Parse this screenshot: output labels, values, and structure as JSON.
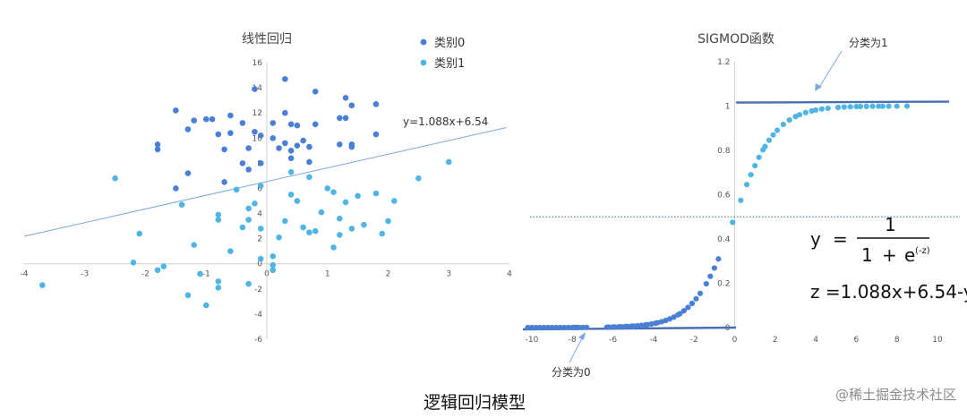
{
  "caption": "逻辑回归模型",
  "watermark": "@稀土掘金技术社区",
  "colors": {
    "class0": "#4a7fd6",
    "class1": "#4fb5e4",
    "line": "#7fa6de",
    "sig_line": "#4a6fb0",
    "ref": "#3a62a8"
  },
  "chart_data": [
    {
      "type": "scatter",
      "title": "线性回归",
      "xlim": [
        -4,
        4
      ],
      "ylim": [
        -6,
        16
      ],
      "x_ticks": [
        "-4",
        "-3",
        "-2",
        "-1",
        "0",
        "1",
        "2",
        "3",
        "4"
      ],
      "y_ticks": [
        "-6",
        "-4",
        "-2",
        "0",
        "2",
        "4",
        "6",
        "8",
        "10",
        "12",
        "14",
        "16"
      ],
      "legend_position": "top-right",
      "series": [
        {
          "name": "类别0",
          "points": [
            [
              -0.2,
              13.9
            ],
            [
              0.3,
              14.7
            ],
            [
              0.8,
              13.7
            ],
            [
              1.3,
              13.2
            ],
            [
              1.4,
              12.6
            ],
            [
              1.8,
              12.7
            ],
            [
              -1.5,
              12.2
            ],
            [
              -1.2,
              11.4
            ],
            [
              -1.0,
              11.5
            ],
            [
              -0.9,
              11.5
            ],
            [
              -0.6,
              11.8
            ],
            [
              -0.4,
              11.2
            ],
            [
              -0.2,
              10.5
            ],
            [
              0.1,
              11.2
            ],
            [
              0.3,
              12.0
            ],
            [
              0.4,
              11.1
            ],
            [
              0.5,
              11.0
            ],
            [
              0.8,
              11.1
            ],
            [
              1.2,
              11.6
            ],
            [
              1.3,
              11.6
            ],
            [
              -1.3,
              10.7
            ],
            [
              -0.8,
              10.3
            ],
            [
              -0.6,
              10.4
            ],
            [
              -0.1,
              10.2
            ],
            [
              0.1,
              10.0
            ],
            [
              0.3,
              9.6
            ],
            [
              0.5,
              9.4
            ],
            [
              0.7,
              9.3
            ],
            [
              0.6,
              9.8
            ],
            [
              1.2,
              9.5
            ],
            [
              1.4,
              9.3
            ],
            [
              1.4,
              9.5
            ],
            [
              1.8,
              10.3
            ],
            [
              -1.8,
              9.5
            ],
            [
              -1.8,
              9.1
            ],
            [
              -0.7,
              9.1
            ],
            [
              -0.3,
              9.2
            ],
            [
              0.2,
              9.2
            ],
            [
              0.4,
              9.0
            ],
            [
              -0.4,
              8.0
            ],
            [
              -0.1,
              8.0
            ],
            [
              0.4,
              8.4
            ],
            [
              0.7,
              8.1
            ],
            [
              -1.3,
              7.2
            ],
            [
              -0.7,
              6.5
            ],
            [
              -1.5,
              6.0
            ],
            [
              -0.3,
              7.5
            ]
          ]
        },
        {
          "name": "类别1",
          "points": [
            [
              -3.7,
              -1.7
            ],
            [
              -2.5,
              6.8
            ],
            [
              -2.2,
              0.1
            ],
            [
              -2.1,
              2.4
            ],
            [
              -1.8,
              -0.5
            ],
            [
              -1.7,
              -0.2
            ],
            [
              -1.4,
              4.7
            ],
            [
              -1.3,
              -2.5
            ],
            [
              -1.0,
              -3.3
            ],
            [
              -1.1,
              -0.8
            ],
            [
              -1.2,
              1.5
            ],
            [
              -0.8,
              -1.9
            ],
            [
              -0.8,
              -1.4
            ],
            [
              -0.8,
              3.9
            ],
            [
              -0.8,
              3.5
            ],
            [
              -0.6,
              1.0
            ],
            [
              -0.5,
              5.9
            ],
            [
              -0.4,
              2.9
            ],
            [
              -0.3,
              3.5
            ],
            [
              -0.3,
              4.4
            ],
            [
              -0.2,
              4.8
            ],
            [
              -0.3,
              -1.6
            ],
            [
              -0.1,
              0.4
            ],
            [
              -0.1,
              2.8
            ],
            [
              0.1,
              -0.5
            ],
            [
              0.1,
              -0.1
            ],
            [
              0.1,
              0.6
            ],
            [
              0.2,
              2.1
            ],
            [
              0.3,
              3.4
            ],
            [
              0.4,
              5.5
            ],
            [
              0.4,
              7.3
            ],
            [
              0.5,
              5.0
            ],
            [
              0.6,
              2.9
            ],
            [
              0.7,
              2.5
            ],
            [
              0.8,
              2.6
            ],
            [
              0.9,
              4.1
            ],
            [
              1.0,
              6.0
            ],
            [
              1.1,
              5.7
            ],
            [
              1.1,
              1.3
            ],
            [
              1.2,
              2.3
            ],
            [
              1.2,
              3.6
            ],
            [
              1.3,
              4.9
            ],
            [
              1.4,
              2.8
            ],
            [
              1.5,
              5.4
            ],
            [
              1.6,
              3.1
            ],
            [
              1.8,
              5.6
            ],
            [
              1.9,
              2.4
            ],
            [
              2.0,
              3.4
            ],
            [
              2.1,
              5.0
            ],
            [
              2.5,
              6.8
            ],
            [
              3.0,
              8.1
            ],
            [
              0.7,
              6.9
            ],
            [
              -0.1,
              6.2
            ]
          ]
        }
      ],
      "fit": {
        "slope": 1.088,
        "intercept": 6.54,
        "label": "y=1.088x+6.54"
      }
    },
    {
      "type": "scatter",
      "title": "SIGMOD函数",
      "xlim": [
        -10,
        10
      ],
      "ylim": [
        0,
        1.2
      ],
      "x_ticks": [
        "-10",
        "-8",
        "-6",
        "-4",
        "-2",
        "0",
        "2",
        "4",
        "6",
        "8",
        "10"
      ],
      "y_ticks": [
        "0",
        "0.2",
        "0.4",
        "0.6",
        "0.8",
        "1",
        "1.2"
      ],
      "function": "sigmoid",
      "class0_x": [
        -10.2,
        -10.0,
        -9.8,
        -9.6,
        -9.4,
        -9.2,
        -9.0,
        -8.8,
        -8.6,
        -8.4,
        -8.2,
        -8.0,
        -7.9,
        -7.8,
        -7.7,
        -7.5,
        -7.3,
        -6.3,
        -6.2,
        -6.0,
        -5.9,
        -5.7,
        -5.6,
        -5.4,
        -5.3,
        -5.1,
        -5.0,
        -4.8,
        -4.6,
        -4.4,
        -4.3,
        -4.1,
        -3.9,
        -3.8,
        -3.6,
        -3.4,
        -3.2,
        -3.0,
        -2.8,
        -2.7,
        -2.5,
        -2.3,
        -2.1,
        -1.9,
        -1.7,
        -1.4,
        -1.2,
        -1.0,
        -0.8
      ],
      "class1_x": [
        -0.1,
        0.3,
        0.6,
        0.8,
        1.0,
        1.2,
        1.4,
        1.5,
        1.7,
        1.9,
        2.1,
        2.4,
        2.7,
        3.0,
        3.2,
        3.5,
        3.8,
        4.0,
        4.3,
        4.6,
        5.1,
        5.4,
        5.7,
        6.0,
        6.2,
        6.5,
        6.8,
        7.1,
        7.3,
        7.6,
        8.0,
        8.5
      ],
      "ref_labels": {
        "top": "分类为1",
        "bottom": "分类为0"
      },
      "formula": {
        "lhs": "y",
        "eq": "=",
        "num": "1",
        "den_a": "1",
        "den_plus": "+",
        "den_e": "e",
        "den_exp": "(-z)"
      },
      "z_formula": "z  =1.088x+6.54-y"
    }
  ]
}
